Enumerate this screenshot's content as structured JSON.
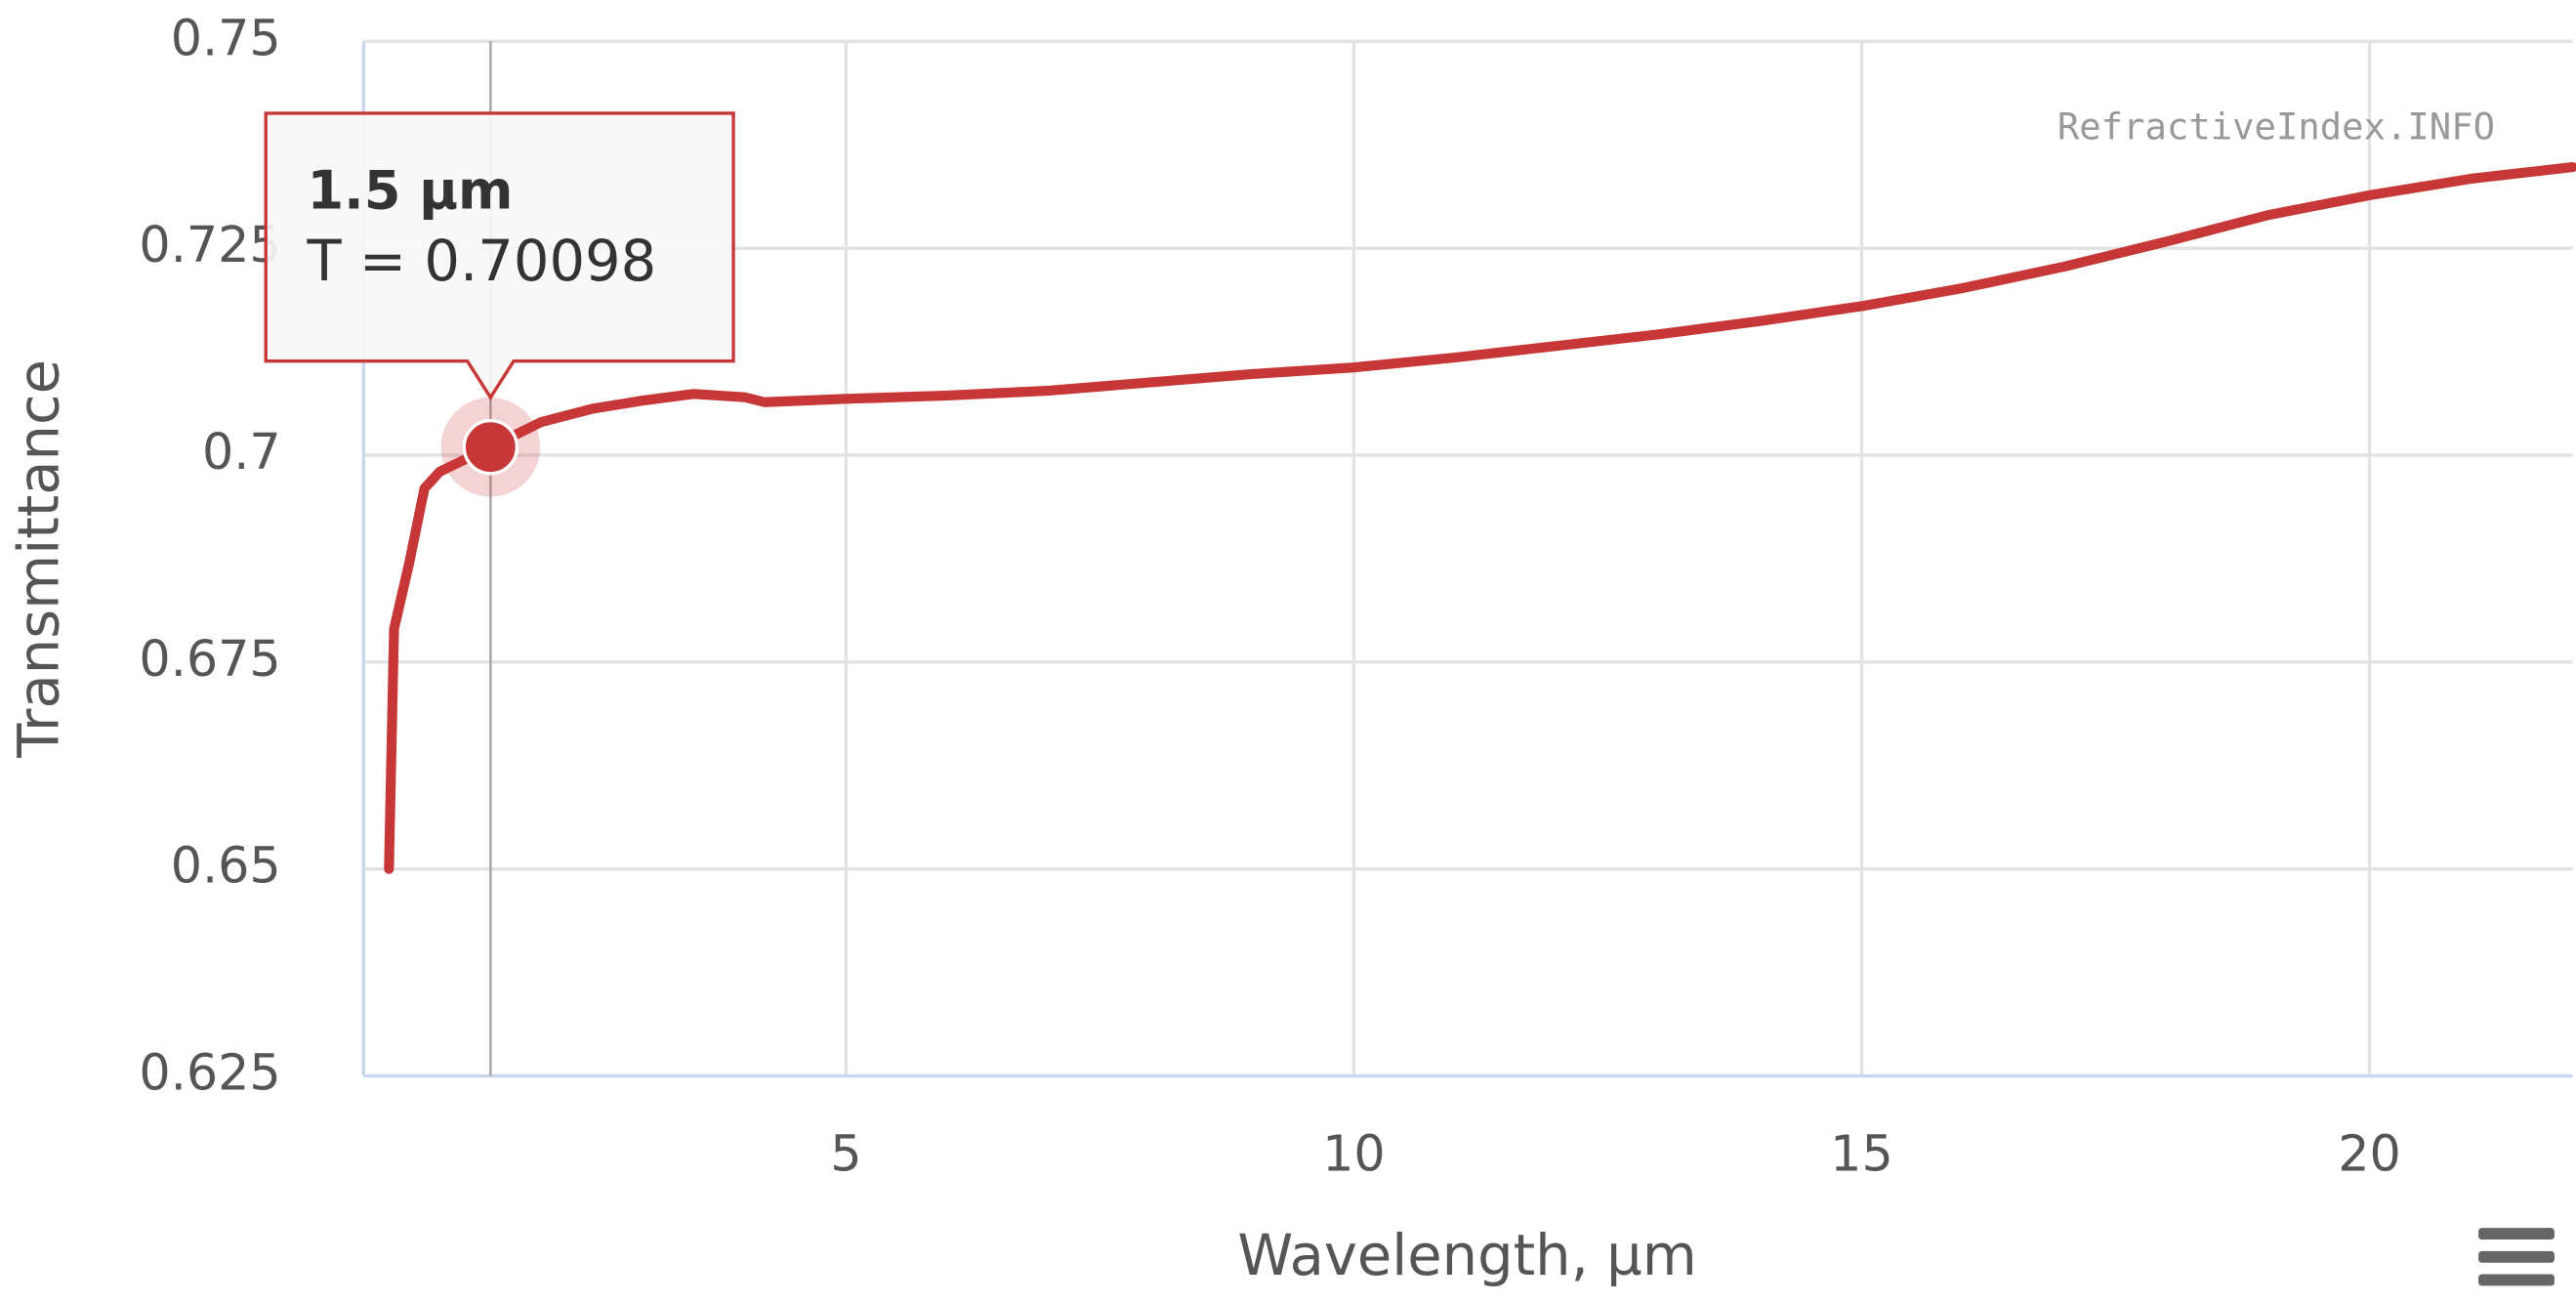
{
  "chart_data": {
    "type": "line",
    "x_label": "Wavelength, µm",
    "y_label": "Transmittance",
    "watermark": "RefractiveIndex.INFO",
    "x": [
      0.5,
      0.55,
      0.7,
      0.85,
      1.0,
      1.5,
      2,
      2.5,
      3,
      3.5,
      4,
      4.2,
      5,
      6,
      7,
      8,
      9,
      10,
      11,
      12,
      13,
      14,
      15,
      16,
      17,
      18,
      19,
      20,
      21,
      22
    ],
    "series": [
      {
        "name": "T",
        "color": "#c83737",
        "values": [
          0.65,
          0.679,
          0.687,
          0.696,
          0.698,
          0.70098,
          0.704,
          0.7056,
          0.7066,
          0.7074,
          0.707,
          0.7064,
          0.7068,
          0.7072,
          0.7078,
          0.7088,
          0.7098,
          0.7106,
          0.7118,
          0.7132,
          0.7146,
          0.7162,
          0.718,
          0.7202,
          0.7228,
          0.7258,
          0.729,
          0.7314,
          0.7334,
          0.7348
        ]
      }
    ],
    "xlim": [
      0.25,
      22
    ],
    "ylim": [
      0.625,
      0.75
    ],
    "xticks": [
      5,
      10,
      15,
      20
    ],
    "yticks": [
      0.625,
      0.65,
      0.675,
      0.7,
      0.725,
      0.75
    ],
    "grid": true,
    "tooltip": {
      "point": 5,
      "title": "1.5 µm",
      "text": "T = 0.70098"
    }
  }
}
